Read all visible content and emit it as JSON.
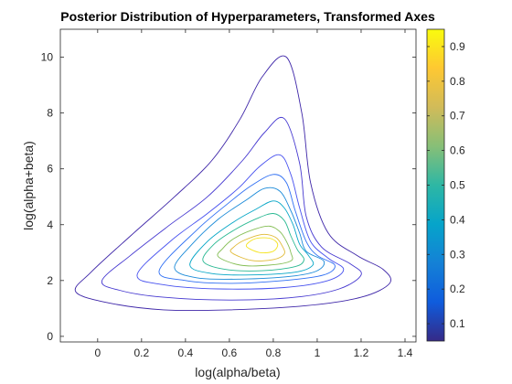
{
  "chart_data": {
    "type": "contour",
    "title": "Posterior Distribution of Hyperparameters, Transformed Axes",
    "xlabel": "log(alpha/beta)",
    "ylabel": "log(alpha+beta)",
    "xlim": [
      -0.17,
      1.45
    ],
    "ylim": [
      -0.2,
      11
    ],
    "xticks": [
      0,
      0.2,
      0.4,
      0.6,
      0.8,
      1,
      1.2,
      1.4
    ],
    "xtick_labels": [
      "0",
      "0.2",
      "0.4",
      "0.6",
      "0.8",
      "1",
      "1.2",
      "1.4"
    ],
    "yticks": [
      0,
      2,
      4,
      6,
      8,
      10
    ],
    "ytick_labels": [
      "0",
      "2",
      "4",
      "6",
      "8",
      "10"
    ],
    "grid": false,
    "colorbar": {
      "range": [
        0.05,
        0.95
      ],
      "ticks": [
        0.1,
        0.2,
        0.3,
        0.4,
        0.5,
        0.6,
        0.7,
        0.8,
        0.9
      ],
      "tick_labels": [
        "0.1",
        "0.2",
        "0.3",
        "0.4",
        "0.5",
        "0.6",
        "0.7",
        "0.8",
        "0.9"
      ],
      "colormap": "parula"
    },
    "contours": [
      {
        "level": 0.05,
        "color": "#3e26a8",
        "points": [
          [
            -0.1,
            1.6
          ],
          [
            0.05,
            1.2
          ],
          [
            0.3,
            0.95
          ],
          [
            0.6,
            0.95
          ],
          [
            0.95,
            1.1
          ],
          [
            1.2,
            1.4
          ],
          [
            1.33,
            1.9
          ],
          [
            1.3,
            2.4
          ],
          [
            1.18,
            2.9
          ],
          [
            1.05,
            3.7
          ],
          [
            0.97,
            5.5
          ],
          [
            0.93,
            8
          ],
          [
            0.86,
            10
          ],
          [
            0.75,
            9.3
          ],
          [
            0.65,
            7.8
          ],
          [
            0.52,
            6.3
          ],
          [
            0.35,
            5.0
          ],
          [
            0.15,
            3.6
          ],
          [
            -0.03,
            2.3
          ]
        ]
      },
      {
        "level": 0.15,
        "color": "#4538d0",
        "points": [
          [
            0.02,
            2.0
          ],
          [
            0.1,
            1.65
          ],
          [
            0.3,
            1.4
          ],
          [
            0.6,
            1.3
          ],
          [
            0.9,
            1.4
          ],
          [
            1.1,
            1.7
          ],
          [
            1.2,
            2.2
          ],
          [
            1.15,
            2.6
          ],
          [
            1.02,
            3.2
          ],
          [
            0.95,
            4.3
          ],
          [
            0.92,
            6.2
          ],
          [
            0.85,
            7.8
          ],
          [
            0.76,
            7.3
          ],
          [
            0.66,
            6.3
          ],
          [
            0.5,
            5.0
          ],
          [
            0.33,
            4.0
          ],
          [
            0.15,
            2.9
          ]
        ]
      },
      {
        "level": 0.25,
        "color": "#4751ef",
        "points": [
          [
            0.18,
            2.2
          ],
          [
            0.3,
            1.85
          ],
          [
            0.55,
            1.7
          ],
          [
            0.85,
            1.75
          ],
          [
            1.05,
            2.0
          ],
          [
            1.12,
            2.4
          ],
          [
            1.05,
            2.8
          ],
          [
            0.97,
            3.4
          ],
          [
            0.92,
            4.6
          ],
          [
            0.88,
            5.8
          ],
          [
            0.83,
            6.5
          ],
          [
            0.74,
            6.1
          ],
          [
            0.64,
            5.3
          ],
          [
            0.5,
            4.4
          ],
          [
            0.33,
            3.4
          ]
        ]
      },
      {
        "level": 0.35,
        "color": "#2f6ff3",
        "points": [
          [
            0.28,
            2.35
          ],
          [
            0.4,
            2.0
          ],
          [
            0.6,
            1.9
          ],
          [
            0.85,
            2.0
          ],
          [
            1.03,
            2.2
          ],
          [
            1.08,
            2.55
          ],
          [
            1.0,
            2.9
          ],
          [
            0.95,
            3.4
          ],
          [
            0.9,
            4.5
          ],
          [
            0.86,
            5.5
          ],
          [
            0.8,
            5.8
          ],
          [
            0.7,
            5.4
          ],
          [
            0.6,
            4.8
          ],
          [
            0.45,
            3.8
          ]
        ]
      },
      {
        "level": 0.45,
        "color": "#1a8ad8",
        "points": [
          [
            0.35,
            2.45
          ],
          [
            0.45,
            2.1
          ],
          [
            0.65,
            2.05
          ],
          [
            0.88,
            2.15
          ],
          [
            1.0,
            2.35
          ],
          [
            1.03,
            2.7
          ],
          [
            0.95,
            3.05
          ],
          [
            0.92,
            3.7
          ],
          [
            0.88,
            4.5
          ],
          [
            0.83,
            5.2
          ],
          [
            0.76,
            5.3
          ],
          [
            0.68,
            4.9
          ],
          [
            0.55,
            4.2
          ],
          [
            0.43,
            3.3
          ]
        ]
      },
      {
        "level": 0.55,
        "color": "#06a6c6",
        "points": [
          [
            0.42,
            2.55
          ],
          [
            0.52,
            2.25
          ],
          [
            0.7,
            2.2
          ],
          [
            0.9,
            2.3
          ],
          [
            0.98,
            2.55
          ],
          [
            0.96,
            2.9
          ],
          [
            0.92,
            3.3
          ],
          [
            0.89,
            4.0
          ],
          [
            0.85,
            4.6
          ],
          [
            0.8,
            4.85
          ],
          [
            0.72,
            4.55
          ],
          [
            0.62,
            4.1
          ],
          [
            0.5,
            3.4
          ]
        ]
      },
      {
        "level": 0.65,
        "color": "#29b892",
        "points": [
          [
            0.48,
            2.7
          ],
          [
            0.58,
            2.4
          ],
          [
            0.75,
            2.35
          ],
          [
            0.9,
            2.5
          ],
          [
            0.94,
            2.75
          ],
          [
            0.91,
            3.1
          ],
          [
            0.88,
            3.6
          ],
          [
            0.85,
            4.15
          ],
          [
            0.8,
            4.4
          ],
          [
            0.72,
            4.2
          ],
          [
            0.62,
            3.8
          ],
          [
            0.53,
            3.3
          ]
        ]
      },
      {
        "level": 0.75,
        "color": "#85be55",
        "points": [
          [
            0.55,
            2.85
          ],
          [
            0.65,
            2.55
          ],
          [
            0.78,
            2.55
          ],
          [
            0.88,
            2.7
          ],
          [
            0.88,
            3.0
          ],
          [
            0.86,
            3.4
          ],
          [
            0.83,
            3.75
          ],
          [
            0.78,
            3.95
          ],
          [
            0.7,
            3.8
          ],
          [
            0.62,
            3.5
          ],
          [
            0.57,
            3.15
          ]
        ]
      },
      {
        "level": 0.85,
        "color": "#e0b935",
        "points": [
          [
            0.61,
            3.0
          ],
          [
            0.7,
            2.72
          ],
          [
            0.8,
            2.75
          ],
          [
            0.85,
            2.95
          ],
          [
            0.84,
            3.25
          ],
          [
            0.81,
            3.55
          ],
          [
            0.75,
            3.65
          ],
          [
            0.67,
            3.45
          ],
          [
            0.62,
            3.2
          ]
        ]
      },
      {
        "level": 0.95,
        "color": "#f5e420",
        "points": [
          [
            0.68,
            3.2
          ],
          [
            0.74,
            3.0
          ],
          [
            0.8,
            3.05
          ],
          [
            0.82,
            3.3
          ],
          [
            0.79,
            3.5
          ],
          [
            0.73,
            3.52
          ],
          [
            0.69,
            3.38
          ]
        ]
      }
    ]
  }
}
